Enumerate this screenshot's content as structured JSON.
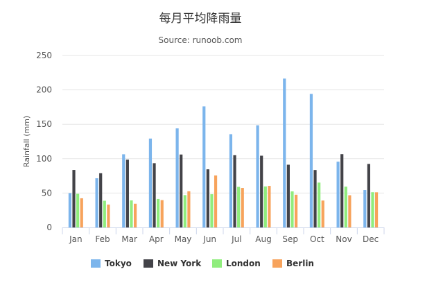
{
  "chart_data": {
    "type": "bar",
    "title": "每月平均降雨量",
    "subtitle": "Source: runoob.com",
    "xlabel": "",
    "ylabel": "Rainfall (mm)",
    "ylim": [
      0,
      250
    ],
    "yticks": [
      0,
      50,
      100,
      150,
      200,
      250
    ],
    "grid": true,
    "legend_position": "bottom",
    "categories": [
      "Jan",
      "Feb",
      "Mar",
      "Apr",
      "May",
      "Jun",
      "Jul",
      "Aug",
      "Sep",
      "Oct",
      "Nov",
      "Dec"
    ],
    "series": [
      {
        "name": "Tokyo",
        "color": "#7cb5ec",
        "values": [
          49.9,
          71.5,
          106.4,
          129.2,
          144.0,
          176.0,
          135.6,
          148.5,
          216.4,
          194.1,
          95.6,
          54.4
        ]
      },
      {
        "name": "New York",
        "color": "#434348",
        "values": [
          83.6,
          78.8,
          98.5,
          93.4,
          106.0,
          84.5,
          105.0,
          104.3,
          91.2,
          83.5,
          106.6,
          92.3
        ]
      },
      {
        "name": "London",
        "color": "#90ed7d",
        "values": [
          48.9,
          38.8,
          39.3,
          41.4,
          47.0,
          48.3,
          59.0,
          59.6,
          52.4,
          65.2,
          59.3,
          51.2
        ]
      },
      {
        "name": "Berlin",
        "color": "#f7a35c",
        "values": [
          42.4,
          33.2,
          34.5,
          39.7,
          52.6,
          75.5,
          57.4,
          60.4,
          47.6,
          39.1,
          46.8,
          51.1
        ]
      }
    ]
  }
}
